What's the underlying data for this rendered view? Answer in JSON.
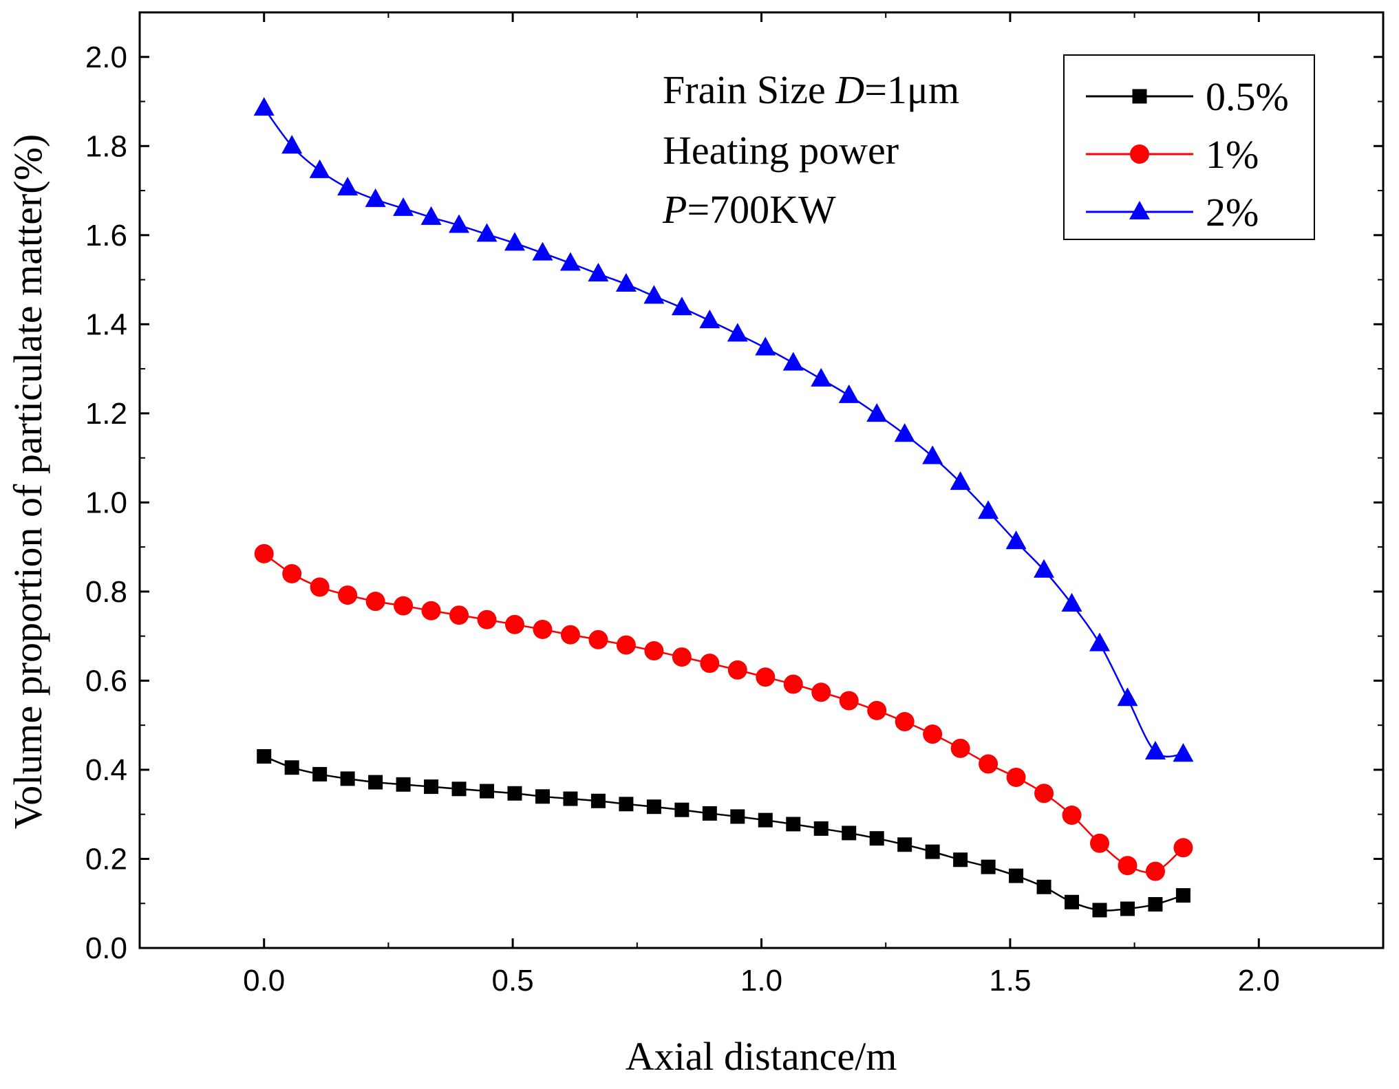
{
  "chart_data": {
    "type": "line",
    "xlabel": "Axial distance/m",
    "ylabel": "Volume proportion of particulate matter(%)",
    "xlim": [
      -0.25,
      2.25
    ],
    "ylim": [
      0.0,
      2.1
    ],
    "xticks": [
      0.0,
      0.5,
      1.0,
      1.5,
      2.0
    ],
    "xtick_labels": [
      "0.0",
      "0.5",
      "1.0",
      "1.5",
      "2.0"
    ],
    "yticks": [
      0.0,
      0.2,
      0.4,
      0.6,
      0.8,
      1.0,
      1.2,
      1.4,
      1.6,
      1.8,
      2.0
    ],
    "ytick_labels": [
      "0.0",
      "0.2",
      "0.4",
      "0.6",
      "0.8",
      "1.0",
      "1.2",
      "1.4",
      "1.6",
      "1.8",
      "2.0"
    ],
    "grid": false,
    "legend_position": "top-right",
    "annotations": {
      "line1_prefix": "Frain Size ",
      "line1_var": "D",
      "line1_value": "=1μm",
      "line2": "Heating power",
      "line3_var": "P",
      "line3_value": "=700KW"
    },
    "x": [
      0.0,
      0.056,
      0.112,
      0.168,
      0.224,
      0.28,
      0.336,
      0.392,
      0.448,
      0.504,
      0.56,
      0.616,
      0.672,
      0.728,
      0.784,
      0.84,
      0.896,
      0.952,
      1.008,
      1.064,
      1.12,
      1.176,
      1.232,
      1.288,
      1.344,
      1.4,
      1.456,
      1.512,
      1.568,
      1.624,
      1.68,
      1.736,
      1.792,
      1.848
    ],
    "series": [
      {
        "name": "0.5%",
        "color": "#000000",
        "marker": "square",
        "values": [
          0.43,
          0.405,
          0.39,
          0.38,
          0.372,
          0.367,
          0.362,
          0.357,
          0.352,
          0.347,
          0.34,
          0.335,
          0.33,
          0.323,
          0.317,
          0.31,
          0.302,
          0.295,
          0.287,
          0.278,
          0.268,
          0.258,
          0.246,
          0.232,
          0.216,
          0.198,
          0.182,
          0.162,
          0.137,
          0.103,
          0.085,
          0.088,
          0.098,
          0.118
        ]
      },
      {
        "name": "1%",
        "color": "#ff0000",
        "marker": "circle",
        "values": [
          0.885,
          0.84,
          0.81,
          0.792,
          0.778,
          0.768,
          0.757,
          0.747,
          0.737,
          0.726,
          0.715,
          0.703,
          0.692,
          0.68,
          0.667,
          0.653,
          0.639,
          0.624,
          0.608,
          0.592,
          0.574,
          0.555,
          0.533,
          0.508,
          0.48,
          0.448,
          0.413,
          0.383,
          0.347,
          0.298,
          0.235,
          0.185,
          0.172,
          0.225
        ]
      },
      {
        "name": "2%",
        "color": "#0000ff",
        "marker": "triangle",
        "values": [
          1.885,
          1.8,
          1.745,
          1.706,
          1.68,
          1.66,
          1.64,
          1.622,
          1.602,
          1.582,
          1.56,
          1.537,
          1.513,
          1.49,
          1.463,
          1.437,
          1.408,
          1.378,
          1.347,
          1.313,
          1.277,
          1.24,
          1.198,
          1.153,
          1.103,
          1.045,
          0.98,
          0.912,
          0.848,
          0.772,
          0.683,
          0.56,
          0.44,
          0.435
        ]
      }
    ]
  }
}
